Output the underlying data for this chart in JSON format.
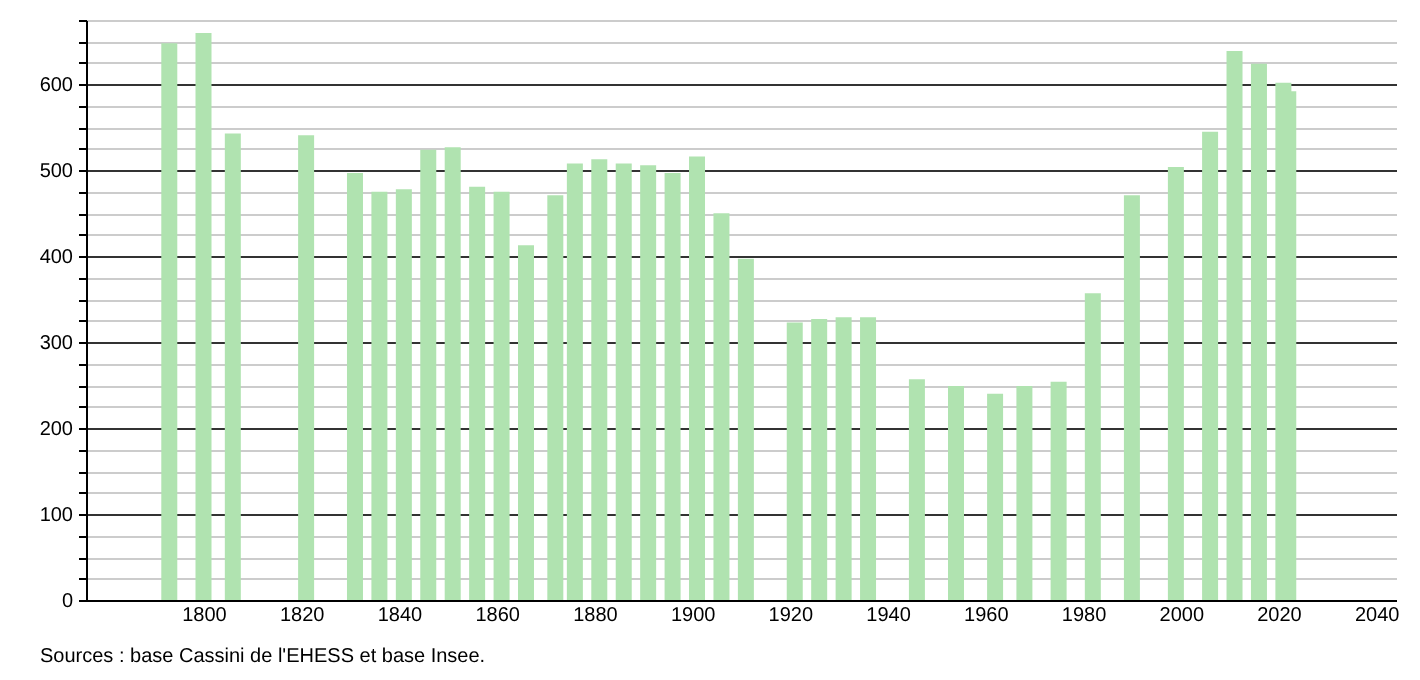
{
  "chart_data": {
    "type": "bar",
    "color": "#b0e3b0",
    "x": [
      1793,
      1800,
      1806,
      1821,
      1831,
      1836,
      1841,
      1846,
      1851,
      1856,
      1861,
      1866,
      1872,
      1876,
      1881,
      1886,
      1891,
      1896,
      1901,
      1906,
      1911,
      1921,
      1926,
      1931,
      1936,
      1946,
      1954,
      1962,
      1968,
      1975,
      1982,
      1990,
      1999,
      2006,
      2011,
      2016,
      2021,
      2022
    ],
    "values": [
      648,
      660,
      543,
      541,
      497,
      475,
      478,
      524,
      527,
      481,
      475,
      413,
      471,
      508,
      513,
      508,
      506,
      497,
      516,
      450,
      397,
      323,
      327,
      329,
      329,
      257,
      249,
      240,
      249,
      254,
      357,
      471,
      504,
      545,
      639,
      624,
      602,
      592
    ],
    "xlim": [
      1778,
      2042
    ],
    "xticks": [
      1800,
      1820,
      1840,
      1860,
      1880,
      1900,
      1920,
      1940,
      1960,
      1980,
      2000,
      2020,
      2040
    ],
    "ylim": [
      0,
      675
    ],
    "yticks": [
      0,
      {
        "value": 25,
        "label": null
      },
      {
        "value": 50,
        "label": null
      },
      {
        "value": 75,
        "label": null
      },
      100,
      {
        "value": 125,
        "label": null
      },
      {
        "value": 150,
        "label": null
      },
      {
        "value": 175,
        "label": null
      },
      200,
      {
        "value": 225,
        "label": null
      },
      {
        "value": 250,
        "label": null
      },
      {
        "value": 275,
        "label": null
      },
      300,
      {
        "value": 325,
        "label": null
      },
      {
        "value": 350,
        "label": null
      },
      {
        "value": 375,
        "label": null
      },
      400,
      {
        "value": 425,
        "label": null
      },
      {
        "value": 450,
        "label": null
      },
      {
        "value": 475,
        "label": null
      },
      500,
      {
        "value": 525,
        "label": null
      },
      {
        "value": 550,
        "label": null
      },
      {
        "value": 575,
        "label": null
      },
      600,
      {
        "value": 625,
        "label": null
      },
      {
        "value": 650,
        "label": null
      },
      {
        "value": 675,
        "label": null
      }
    ],
    "grid": "y",
    "annotations": [
      "Sources : base Cassini de l'EHESS et base Insee."
    ]
  }
}
